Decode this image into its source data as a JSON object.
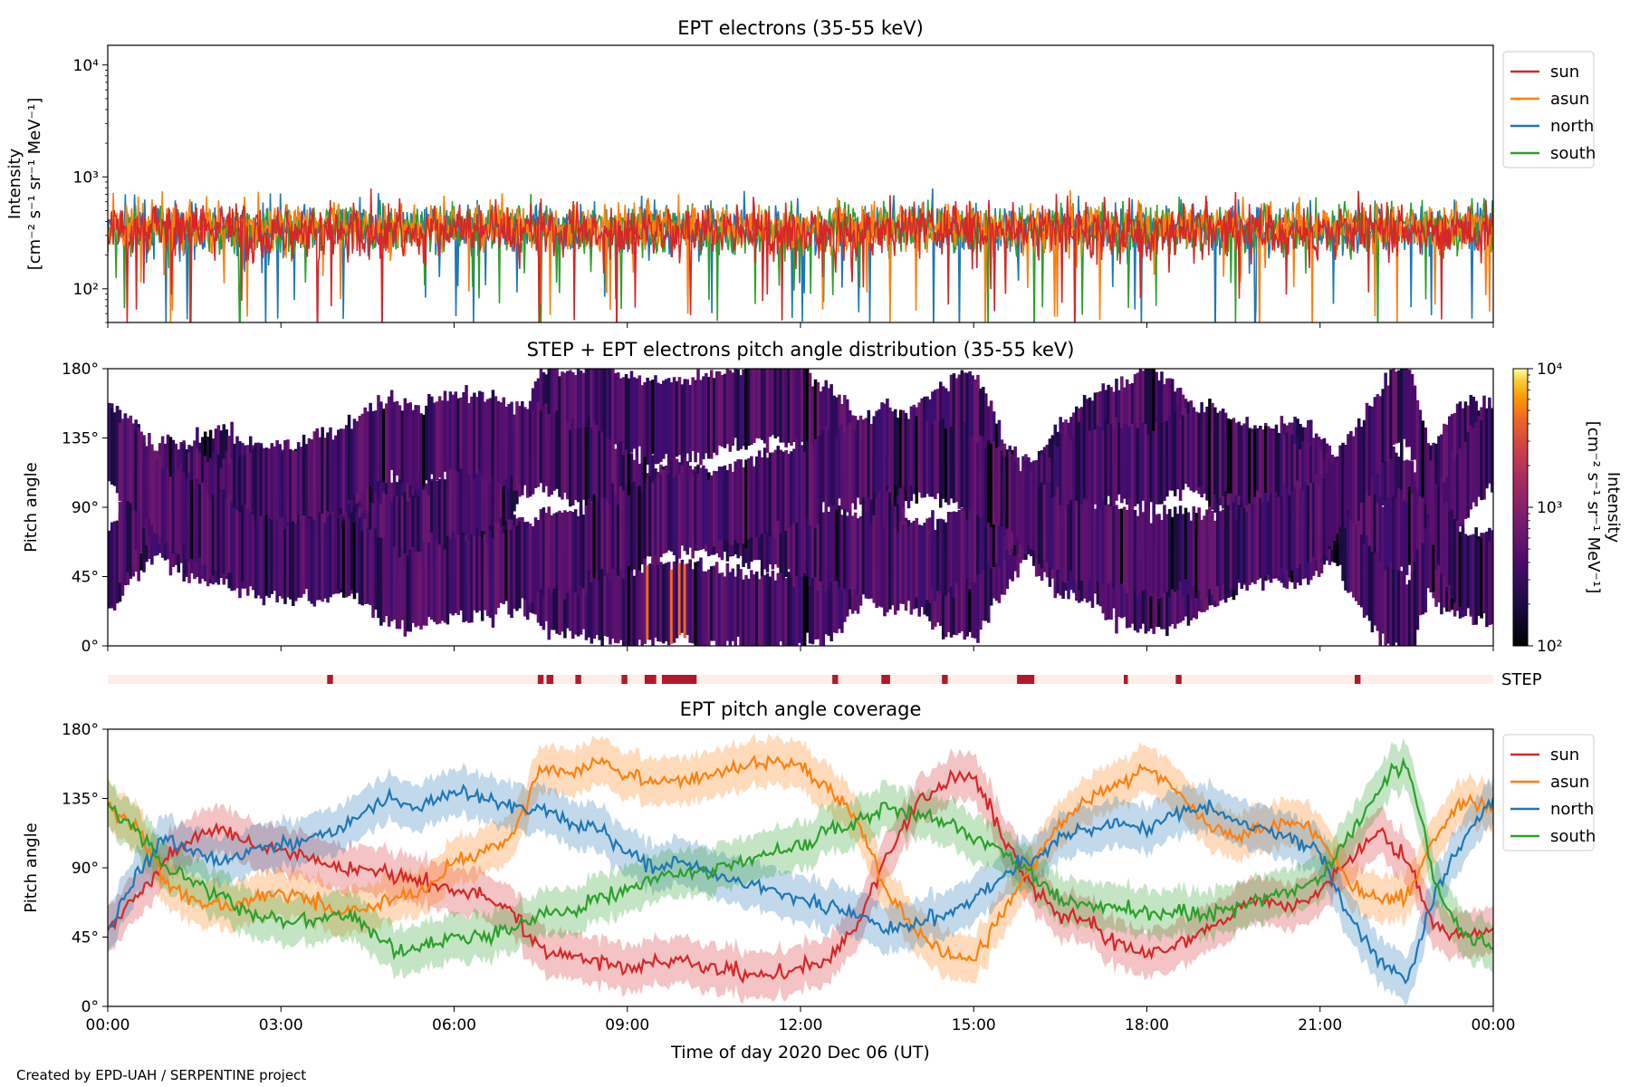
{
  "footer": "Created by EPD-UAH / SERPENTINE project",
  "xaxis": {
    "label": "Time of day 2020 Dec 06 (UT)",
    "range_hours": [
      0,
      24
    ],
    "ticks": [
      "00:00",
      "03:00",
      "06:00",
      "09:00",
      "12:00",
      "15:00",
      "18:00",
      "21:00",
      "00:00"
    ]
  },
  "chart_data": [
    {
      "type": "line",
      "title": "EPT electrons (35-55 keV)",
      "ylabel": [
        "Intensity",
        "[cm⁻² s⁻¹ sr⁻¹ MeV⁻¹]"
      ],
      "yscale": "log",
      "ylim": [
        50,
        15000
      ],
      "yticks": [
        "10²",
        "10³",
        "10⁴"
      ],
      "legend_position": "right",
      "series": [
        {
          "name": "sun",
          "color": "#d62728",
          "baseline": 330,
          "spread": 0.24
        },
        {
          "name": "asun",
          "color": "#ff7f0e",
          "baseline": 360,
          "spread": 0.22
        },
        {
          "name": "north",
          "color": "#1f77b4",
          "baseline": 350,
          "spread": 0.22
        },
        {
          "name": "south",
          "color": "#2ca02c",
          "baseline": 345,
          "spread": 0.22
        }
      ]
    },
    {
      "type": "heatmap",
      "title": "STEP + EPT electrons pitch angle distribution (35-55 keV)",
      "ylabel": "Pitch angle",
      "ylim": [
        0,
        180
      ],
      "yticks": [
        "0°",
        "45°",
        "90°",
        "135°",
        "180°"
      ],
      "colorbar": {
        "label": [
          "Intensity",
          "[cm⁻² s⁻¹ sr⁻¹ MeV⁻¹]"
        ],
        "scale": "log",
        "range": [
          100,
          10000
        ],
        "ticks": [
          "10²",
          "10³",
          "10⁴"
        ],
        "colormap": "inferno"
      }
    },
    {
      "type": "bar",
      "label": "STEP",
      "background_color": "#fdeee8",
      "mark_color": "#b2182b",
      "intervals_hours": [
        [
          3.8,
          3.9
        ],
        [
          7.45,
          7.55
        ],
        [
          7.6,
          7.72
        ],
        [
          8.1,
          8.2
        ],
        [
          8.9,
          9.0
        ],
        [
          9.3,
          9.5
        ],
        [
          9.6,
          10.2
        ],
        [
          12.55,
          12.65
        ],
        [
          13.4,
          13.55
        ],
        [
          14.45,
          14.55
        ],
        [
          15.75,
          16.05
        ],
        [
          17.6,
          17.67
        ],
        [
          18.5,
          18.6
        ],
        [
          21.6,
          21.7
        ]
      ]
    },
    {
      "type": "line",
      "title": "EPT pitch angle coverage",
      "ylabel": "Pitch angle",
      "ylim": [
        0,
        180
      ],
      "yticks": [
        "0°",
        "45°",
        "90°",
        "135°",
        "180°"
      ],
      "legend_position": "right",
      "band_halfwidth_deg": 15,
      "series": [
        {
          "name": "sun",
          "color": "#d62728",
          "x": [
            0,
            0.5,
            1,
            1.5,
            2,
            2.5,
            3,
            3.5,
            4,
            4.5,
            5,
            5.5,
            6,
            6.5,
            7,
            7.5,
            8,
            8.5,
            9,
            9.5,
            10,
            10.5,
            11,
            11.5,
            12,
            12.5,
            13,
            13.5,
            14,
            14.5,
            15,
            15.5,
            16,
            16.5,
            17,
            17.5,
            18,
            18.5,
            19,
            19.5,
            20,
            20.5,
            21,
            21.5,
            22,
            22.5,
            23,
            23.5,
            24
          ],
          "y": [
            50,
            70,
            95,
            110,
            115,
            105,
            100,
            95,
            90,
            90,
            85,
            80,
            75,
            72,
            65,
            35,
            32,
            30,
            25,
            28,
            30,
            25,
            22,
            22,
            25,
            30,
            55,
            100,
            130,
            145,
            150,
            110,
            80,
            60,
            55,
            40,
            35,
            40,
            50,
            60,
            70,
            65,
            75,
            95,
            115,
            95,
            50,
            45,
            50
          ]
        },
        {
          "name": "asun",
          "color": "#ff7f0e",
          "x": [
            0,
            0.5,
            1,
            1.5,
            2,
            2.5,
            3,
            3.5,
            4,
            4.5,
            5,
            5.5,
            6,
            6.5,
            7,
            7.5,
            8,
            8.5,
            9,
            9.5,
            10,
            10.5,
            11,
            11.5,
            12,
            12.5,
            13,
            13.5,
            14,
            14.5,
            15,
            15.5,
            16,
            16.5,
            17,
            17.5,
            18,
            18.5,
            19,
            19.5,
            20,
            20.5,
            21,
            21.5,
            22,
            22.5,
            23,
            23.5,
            24
          ],
          "y": [
            130,
            115,
            80,
            70,
            65,
            70,
            75,
            70,
            60,
            65,
            70,
            75,
            95,
            100,
            110,
            155,
            150,
            160,
            150,
            145,
            148,
            152,
            155,
            160,
            155,
            140,
            120,
            75,
            50,
            35,
            30,
            60,
            90,
            120,
            135,
            145,
            155,
            140,
            120,
            110,
            115,
            120,
            110,
            80,
            70,
            70,
            110,
            135,
            130
          ]
        },
        {
          "name": "north",
          "color": "#1f77b4",
          "x": [
            0,
            0.5,
            1,
            1.5,
            2,
            2.5,
            3,
            3.5,
            4,
            4.5,
            5,
            5.5,
            6,
            6.5,
            7,
            7.5,
            8,
            8.5,
            9,
            9.5,
            10,
            10.5,
            11,
            11.5,
            12,
            12.5,
            13,
            13.5,
            14,
            14.5,
            15,
            15.5,
            16,
            16.5,
            17,
            17.5,
            18,
            18.5,
            19,
            19.5,
            20,
            20.5,
            21,
            21.5,
            22,
            22.5,
            23,
            23.5,
            24
          ],
          "y": [
            50,
            85,
            110,
            100,
            95,
            100,
            105,
            110,
            115,
            130,
            135,
            130,
            140,
            135,
            130,
            125,
            120,
            115,
            100,
            90,
            95,
            85,
            80,
            75,
            70,
            65,
            60,
            50,
            55,
            60,
            70,
            85,
            95,
            110,
            115,
            120,
            115,
            125,
            130,
            120,
            115,
            110,
            100,
            60,
            30,
            15,
            75,
            110,
            135
          ]
        },
        {
          "name": "south",
          "color": "#2ca02c",
          "x": [
            0,
            0.5,
            1,
            1.5,
            2,
            2.5,
            3,
            3.5,
            4,
            4.5,
            5,
            5.5,
            6,
            6.5,
            7,
            7.5,
            8,
            8.5,
            9,
            9.5,
            10,
            10.5,
            11,
            11.5,
            12,
            12.5,
            13,
            13.5,
            14,
            14.5,
            15,
            15.5,
            16,
            16.5,
            17,
            17.5,
            18,
            18.5,
            19,
            19.5,
            20,
            20.5,
            21,
            21.5,
            22,
            22.5,
            23,
            23.5,
            24
          ],
          "y": [
            130,
            115,
            90,
            80,
            70,
            60,
            55,
            55,
            60,
            50,
            35,
            40,
            45,
            45,
            50,
            60,
            62,
            70,
            75,
            85,
            85,
            88,
            95,
            100,
            105,
            115,
            120,
            130,
            125,
            120,
            110,
            100,
            85,
            70,
            65,
            65,
            60,
            60,
            60,
            65,
            70,
            75,
            85,
            110,
            140,
            160,
            80,
            45,
            40
          ]
        }
      ]
    }
  ]
}
